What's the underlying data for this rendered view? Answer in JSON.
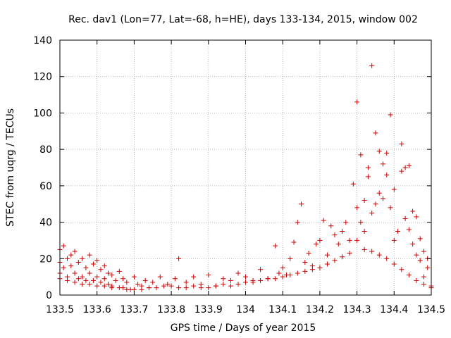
{
  "chart_data": {
    "type": "scatter",
    "title": "Rec. dav1 (Lon=77, Lat=-68, h=HE), days 133-134, 2015, window 002",
    "xlabel": "GPS time / Days of year 2015",
    "ylabel": "STEC from uqrg / TECUs",
    "xlim": [
      133.5,
      134.5
    ],
    "ylim": [
      0,
      140
    ],
    "xticks": [
      133.5,
      133.6,
      133.7,
      133.8,
      133.9,
      134.0,
      134.1,
      134.2,
      134.3,
      134.4,
      134.5
    ],
    "xtick_labels": [
      "133.5",
      "133.6",
      "133.7",
      "133.8",
      "133.9",
      "134",
      "134.1",
      "134.2",
      "134.3",
      "134.4",
      "134.5"
    ],
    "yticks": [
      0,
      20,
      40,
      60,
      80,
      100,
      120,
      140
    ],
    "ytick_labels": [
      "0",
      "20",
      "40",
      "60",
      "80",
      "100",
      "120",
      "140"
    ],
    "grid": true,
    "marker": "+",
    "color": "#cc0000",
    "series": [
      {
        "x": [
          133.5,
          133.5,
          133.5,
          133.51,
          133.51,
          133.52,
          133.52,
          133.53,
          133.53,
          133.54,
          133.54,
          133.55,
          133.55,
          133.56,
          133.56,
          133.57,
          133.57,
          133.58,
          133.58,
          133.59,
          133.59,
          133.6,
          133.6,
          133.61,
          133.61,
          133.62,
          133.62,
          133.63,
          133.63,
          133.64,
          133.64,
          133.65,
          133.66,
          133.67,
          133.67,
          133.68,
          133.69,
          133.7,
          133.71,
          133.72,
          133.73,
          133.74,
          133.75,
          133.77,
          133.79,
          133.81,
          133.82,
          133.84,
          133.86,
          133.88,
          133.9,
          133.92,
          133.94,
          133.96,
          133.98,
          134.0,
          134.02,
          134.04,
          134.06,
          134.08,
          134.09,
          134.1,
          134.11,
          134.12,
          134.13,
          134.14,
          134.15,
          134.16,
          134.17,
          134.18,
          134.19,
          134.2,
          134.21,
          134.22,
          134.23,
          134.24,
          134.25,
          134.26,
          134.27,
          134.28,
          134.29,
          134.3,
          134.3,
          134.31,
          134.31,
          134.32,
          134.32,
          134.33,
          134.33,
          134.34,
          134.34,
          134.35,
          134.35,
          134.36,
          134.36,
          134.37,
          134.37,
          134.38,
          134.38,
          134.39,
          134.39,
          134.4,
          134.4,
          134.41,
          134.42,
          134.42,
          134.43,
          134.43,
          134.44,
          134.44,
          134.45,
          134.45,
          134.46,
          134.46,
          134.47,
          134.47,
          134.48,
          134.48,
          134.49,
          134.49,
          134.5
        ],
        "y": [
          25,
          18,
          12,
          27,
          15,
          20,
          10,
          22,
          16,
          24,
          12,
          18,
          9,
          20,
          10,
          15,
          8,
          22,
          12,
          17,
          8,
          19,
          10,
          14,
          7,
          16,
          9,
          12,
          6,
          11,
          5,
          8,
          13,
          4,
          9,
          7,
          3,
          10,
          6,
          5,
          8,
          4,
          7,
          10,
          6,
          9,
          20,
          7,
          10,
          6,
          11,
          5,
          9,
          8,
          12,
          10,
          7,
          14,
          9,
          27,
          12,
          15,
          11,
          20,
          29,
          40,
          50,
          18,
          23,
          16,
          28,
          30,
          41,
          22,
          38,
          33,
          28,
          35,
          40,
          30,
          61,
          106,
          48,
          77,
          40,
          35,
          52,
          65,
          70,
          45,
          126,
          89,
          50,
          79,
          56,
          72,
          53,
          66,
          78,
          48,
          99,
          30,
          58,
          35,
          83,
          68,
          42,
          70,
          36,
          71,
          28,
          46,
          43,
          22,
          19,
          31,
          10,
          24,
          15,
          20,
          5
        ]
      },
      {
        "x": [
          133.5,
          133.52,
          133.54,
          133.56,
          133.58,
          133.6,
          133.62,
          133.64,
          133.66,
          133.68,
          133.7,
          133.72,
          133.74,
          133.76,
          133.78,
          133.8,
          133.82,
          133.84,
          133.86,
          133.88,
          133.9,
          133.92,
          133.94,
          133.96,
          133.98,
          134.0,
          134.02,
          134.04,
          134.06,
          134.08,
          134.1,
          134.12,
          134.14,
          134.16,
          134.18,
          134.2,
          134.22,
          134.24,
          134.26,
          134.28,
          134.3,
          134.32,
          134.34,
          134.36,
          134.38,
          134.4,
          134.42,
          134.44,
          134.46,
          134.48,
          134.5
        ],
        "y": [
          9,
          8,
          7,
          6,
          6,
          5,
          5,
          4,
          4,
          3,
          3,
          3,
          4,
          4,
          5,
          5,
          4,
          4,
          5,
          4,
          4,
          5,
          6,
          5,
          6,
          7,
          8,
          8,
          9,
          9,
          10,
          11,
          12,
          13,
          14,
          15,
          17,
          19,
          21,
          23,
          30,
          25,
          24,
          22,
          20,
          17,
          14,
          11,
          8,
          6,
          4
        ]
      }
    ]
  }
}
